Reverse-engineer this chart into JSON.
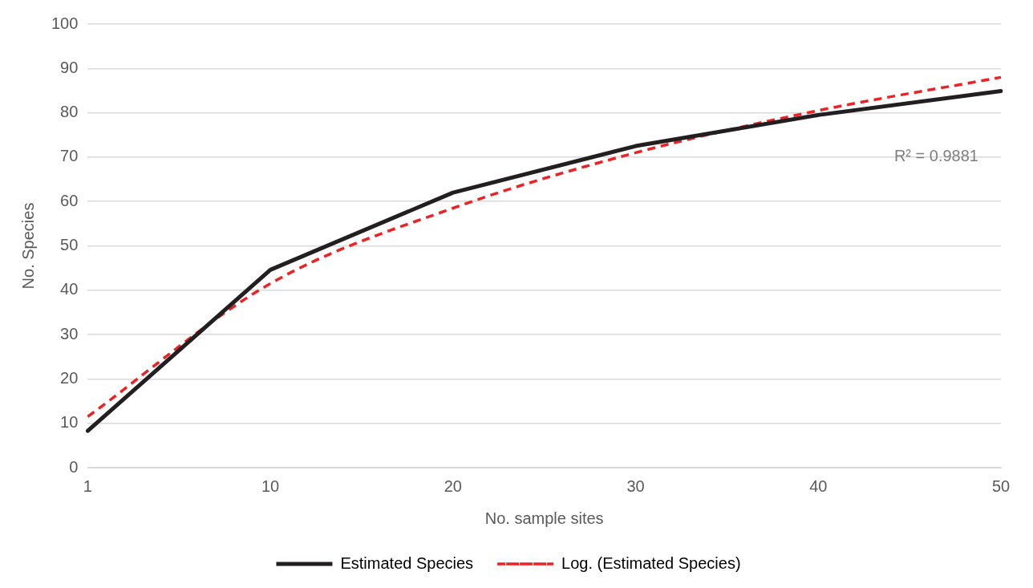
{
  "chart_data": {
    "type": "line",
    "xlabel": "No. sample sites",
    "ylabel": "No. Species",
    "categories": [
      "1",
      "10",
      "20",
      "30",
      "40",
      "50"
    ],
    "series": [
      {
        "name": "Estimated Species",
        "color": "#231f20",
        "values": [
          8.3,
          44.6,
          62,
          72.5,
          79.5,
          84.9
        ],
        "line_style": "solid"
      },
      {
        "name": "Log. (Estimated Species)",
        "color": "#ee2124",
        "type": "line",
        "values": [
          11.5,
          41.5,
          58.5,
          71,
          80.5,
          88
        ],
        "line_style": "dashed"
      }
    ],
    "ylim": [
      0,
      100
    ],
    "yticks": [
      0,
      10,
      20,
      30,
      40,
      50,
      60,
      70,
      80,
      90,
      100
    ],
    "grid": "y",
    "legend": "bottom",
    "marker": "none",
    "annotations": [
      "R² = 0.9881"
    ]
  }
}
